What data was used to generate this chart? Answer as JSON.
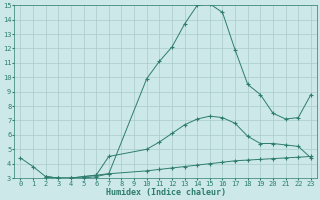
{
  "xlabel": "Humidex (Indice chaleur)",
  "xlim": [
    -0.5,
    23.5
  ],
  "ylim": [
    3,
    15
  ],
  "xticks": [
    0,
    1,
    2,
    3,
    4,
    5,
    6,
    7,
    8,
    9,
    10,
    11,
    12,
    13,
    14,
    15,
    16,
    17,
    18,
    19,
    20,
    21,
    22,
    23
  ],
  "yticks": [
    3,
    4,
    5,
    6,
    7,
    8,
    9,
    10,
    11,
    12,
    13,
    14,
    15
  ],
  "bg_color": "#cce8e8",
  "grid_color": "#aacccc",
  "line_color": "#2e7d6e",
  "curve1_x": [
    0,
    1,
    2,
    3,
    4,
    5,
    6,
    7,
    10,
    11,
    12,
    13,
    14,
    15,
    16,
    17,
    18,
    19,
    20,
    21,
    22,
    23
  ],
  "curve1_y": [
    4.4,
    3.8,
    3.1,
    3.0,
    3.0,
    3.0,
    3.1,
    3.3,
    9.9,
    11.1,
    12.1,
    13.7,
    15.0,
    15.1,
    14.5,
    11.9,
    9.5,
    8.8,
    7.5,
    7.1,
    7.2,
    8.8
  ],
  "curve2_x": [
    2,
    3,
    4,
    5,
    6,
    7,
    10,
    11,
    12,
    13,
    14,
    15,
    16,
    17,
    18,
    19,
    20,
    21,
    22,
    23
  ],
  "curve2_y": [
    3.1,
    3.0,
    3.0,
    3.1,
    3.2,
    4.5,
    5.0,
    5.5,
    6.1,
    6.7,
    7.1,
    7.3,
    7.2,
    6.8,
    5.9,
    5.4,
    5.4,
    5.3,
    5.2,
    4.4
  ],
  "curve3_x": [
    2,
    3,
    4,
    5,
    6,
    7,
    10,
    11,
    12,
    13,
    14,
    15,
    16,
    17,
    18,
    19,
    20,
    21,
    22,
    23
  ],
  "curve3_y": [
    3.1,
    3.0,
    3.0,
    3.1,
    3.2,
    3.3,
    3.5,
    3.6,
    3.7,
    3.8,
    3.9,
    4.0,
    4.1,
    4.2,
    4.25,
    4.3,
    4.35,
    4.4,
    4.45,
    4.5
  ]
}
